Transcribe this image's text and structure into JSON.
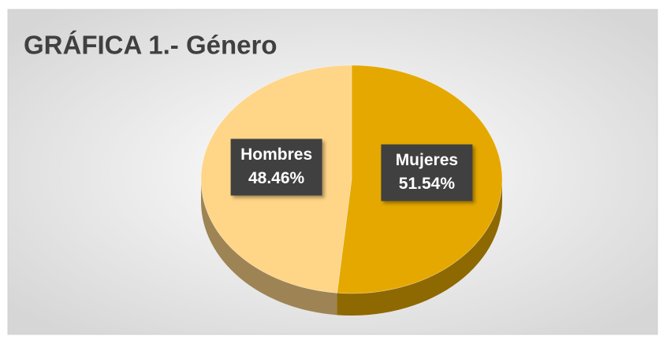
{
  "chart_data": {
    "type": "pie",
    "title": "GRÁFICA 1.- Género",
    "categories": [
      "Mujeres",
      "Hombres"
    ],
    "values": [
      51.54,
      48.46
    ],
    "value_labels": [
      "51.54%",
      "48.46%"
    ],
    "colors": [
      "#e5a800",
      "#ffd587"
    ]
  }
}
